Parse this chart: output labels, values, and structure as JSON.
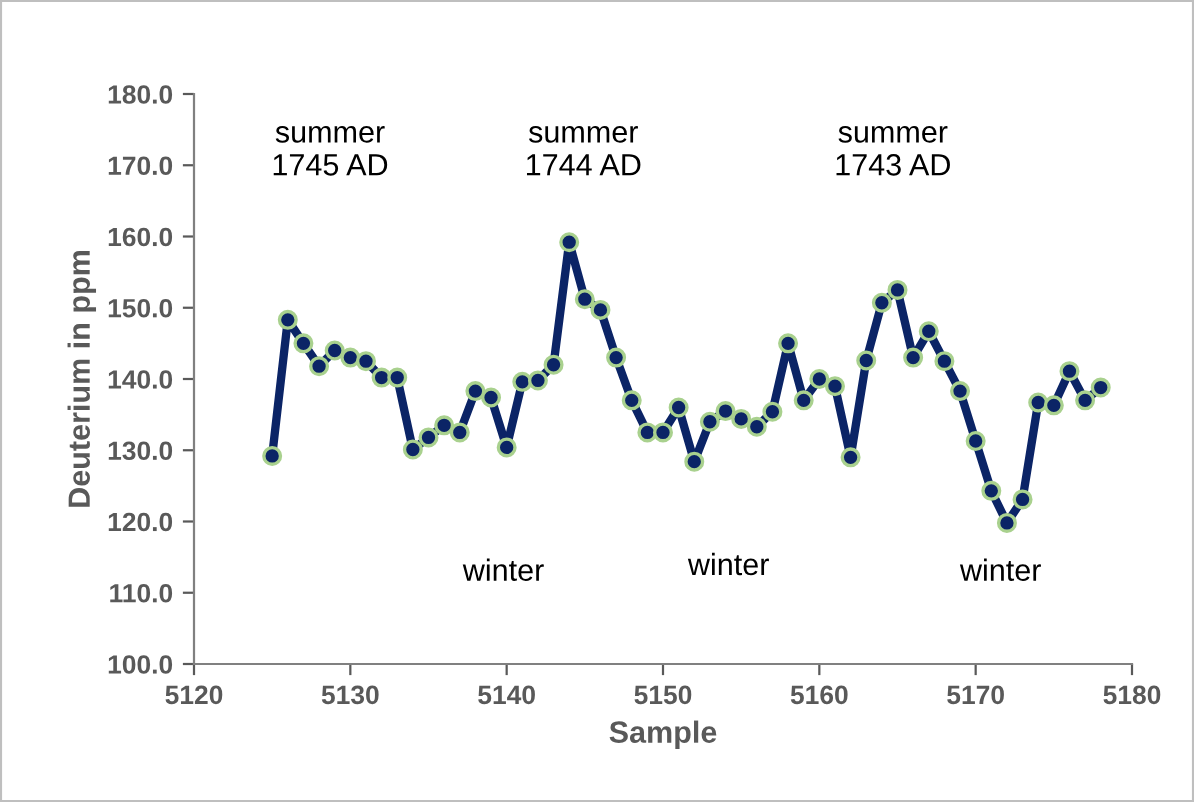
{
  "chart_data": {
    "type": "line",
    "xlabel": "Sample",
    "ylabel": "Deuterium in ppm",
    "x": [
      5125,
      5126,
      5127,
      5128,
      5129,
      5130,
      5131,
      5132,
      5133,
      5134,
      5135,
      5136,
      5137,
      5138,
      5139,
      5140,
      5141,
      5142,
      5143,
      5144,
      5145,
      5146,
      5147,
      5148,
      5149,
      5150,
      5151,
      5152,
      5153,
      5154,
      5155,
      5156,
      5157,
      5158,
      5159,
      5160,
      5161,
      5162,
      5163,
      5164,
      5165,
      5166,
      5167,
      5168,
      5169,
      5170,
      5171,
      5172,
      5173,
      5174,
      5175,
      5176,
      5177,
      5178
    ],
    "series": [
      {
        "color": "#0b2466",
        "values": [
          129.2,
          148.3,
          145,
          141.8,
          144,
          143,
          142.5,
          140.2,
          140.2,
          130.1,
          131.8,
          133.5,
          132.5,
          138.3,
          137.4,
          130.4,
          139.6,
          139.8,
          142,
          159.2,
          151.2,
          149.7,
          143,
          137,
          132.5,
          132.5,
          136,
          128.4,
          134,
          135.5,
          134.4,
          133.3,
          135.4,
          145,
          137,
          140,
          139,
          129,
          142.6,
          150.7,
          152.5,
          143,
          146.7,
          142.5,
          138.3,
          131.3,
          124.3,
          119.8,
          123.1,
          136.7,
          136.3,
          141.1,
          137,
          138.8
        ]
      }
    ],
    "marker": "circle",
    "line_style": "solid",
    "grid": false,
    "legend": false,
    "xlim": [
      5120,
      5180
    ],
    "xticks": [
      5120,
      5130,
      5140,
      5150,
      5160,
      5170,
      5180
    ],
    "ylim": [
      100,
      180
    ],
    "yticks": [
      {
        "value": 100,
        "label": "100.0"
      },
      {
        "value": 110,
        "label": "110.0"
      },
      {
        "value": 120,
        "label": "120.0"
      },
      {
        "value": 130,
        "label": "130.0"
      },
      {
        "value": 140,
        "label": "140.0"
      },
      {
        "value": 150,
        "label": "150.0"
      },
      {
        "value": 160,
        "label": "160.0"
      },
      {
        "value": 170,
        "label": "170.0"
      },
      {
        "value": 180,
        "label": "180.0"
      }
    ],
    "annotations": [
      "summer\n1745 AD",
      "summer\n1744 AD",
      "summer\n1743 AD",
      "winter",
      "winter",
      "winter"
    ]
  }
}
